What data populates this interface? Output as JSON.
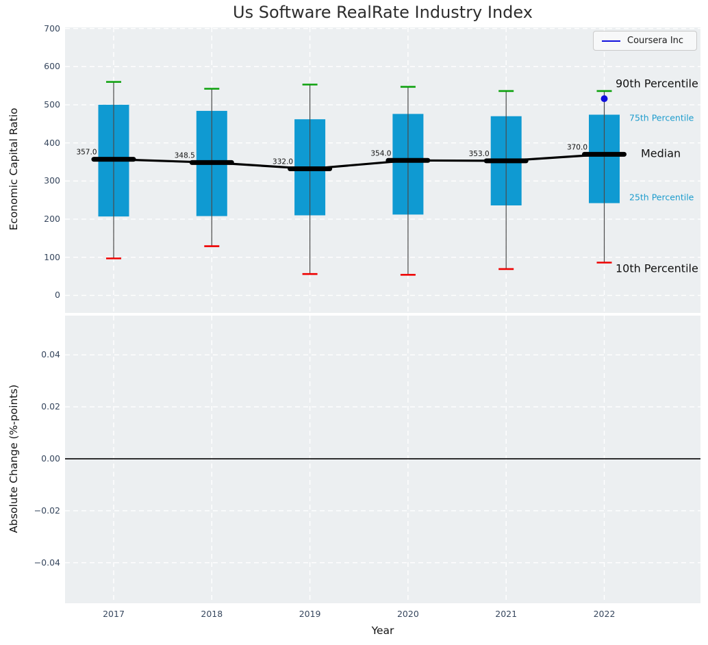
{
  "title": "Us Software RealRate Industry Index",
  "legend": {
    "label": "Coursera Inc"
  },
  "annotations": {
    "p90": "90th Percentile",
    "p75": "75th Percentile",
    "median": "Median",
    "p25": "25th Percentile",
    "p10": "10th Percentile"
  },
  "colors": {
    "box_fill": "#0f9ad2",
    "whisker": "#4a4a4a",
    "cap_high": "#0aa00a",
    "cap_low": "#ee0000",
    "median_line": "#000000",
    "company_blue": "#1010dd",
    "plot_bg": "#eceff1",
    "grid": "#ffffff",
    "tick_text": "#36465d",
    "zero_line": "#000000",
    "median_label_text": "#111111"
  },
  "chart_data": {
    "type": "box",
    "title": "Us Software RealRate Industry Index",
    "xlabel": "Year",
    "categories": [
      "2017",
      "2018",
      "2019",
      "2020",
      "2021",
      "2022"
    ],
    "legend_position": "upper right",
    "grid": "white dashed on light gray",
    "top_panel": {
      "ylabel": "Economic Capital Ratio",
      "yticks": [
        0,
        100,
        200,
        300,
        400,
        500,
        600,
        700
      ],
      "ylim": [
        -46,
        703
      ],
      "boxes": [
        {
          "year": "2017",
          "p90": 560,
          "p75": 500,
          "median": 357.0,
          "p25": 207,
          "p10": 97,
          "median_label": "357.0"
        },
        {
          "year": "2018",
          "p90": 542,
          "p75": 484,
          "median": 348.5,
          "p25": 208,
          "p10": 129,
          "median_label": "348.5"
        },
        {
          "year": "2019",
          "p90": 553,
          "p75": 462,
          "median": 332.0,
          "p25": 210,
          "p10": 56,
          "median_label": "332.0"
        },
        {
          "year": "2020",
          "p90": 547,
          "p75": 476,
          "median": 354.0,
          "p25": 212,
          "p10": 54,
          "median_label": "354.0"
        },
        {
          "year": "2021",
          "p90": 536,
          "p75": 470,
          "median": 353.0,
          "p25": 236,
          "p10": 69,
          "median_label": "353.0"
        },
        {
          "year": "2022",
          "p90": 536,
          "p75": 474,
          "median": 370.0,
          "p25": 242,
          "p10": 86,
          "median_label": "370.0"
        }
      ],
      "company_series": {
        "name": "Coursera Inc",
        "points": [
          {
            "year": "2022",
            "value": 516
          }
        ]
      }
    },
    "bottom_panel": {
      "ylabel": "Absolute Change (%-points)",
      "ytick_labels": [
        "0.04",
        "0.02",
        "0.00",
        "−0.02",
        "−0.04"
      ],
      "ytick_values": [
        0.04,
        0.02,
        0.0,
        -0.02,
        -0.04
      ],
      "ylim": [
        -0.0556,
        0.0551
      ],
      "zero_line": 0.0,
      "series": []
    }
  }
}
